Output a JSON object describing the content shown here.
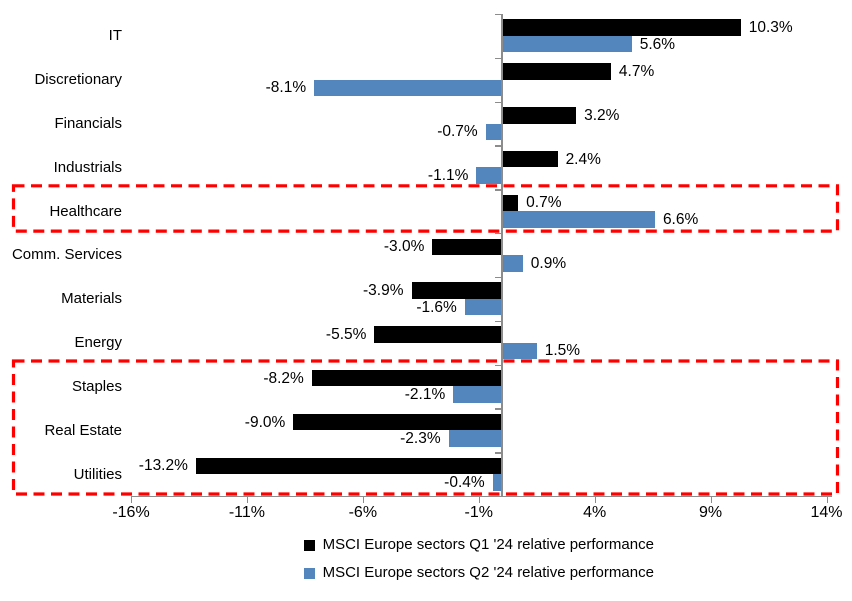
{
  "chart_data": {
    "type": "bar",
    "orientation": "horizontal",
    "title": "",
    "categories": [
      "IT",
      "Discretionary",
      "Financials",
      "Industrials",
      "Healthcare",
      "Comm. Services",
      "Materials",
      "Energy",
      "Staples",
      "Real Estate",
      "Utilities"
    ],
    "series": [
      {
        "name": "MSCI Europe sectors Q1 '24 relative performance",
        "color": "#000000",
        "values": [
          10.3,
          4.7,
          3.2,
          2.4,
          0.7,
          -3.0,
          -3.9,
          -5.5,
          -8.2,
          -9.0,
          -13.2
        ],
        "labels": [
          "10.3%",
          "4.7%",
          "3.2%",
          "2.4%",
          "0.7%",
          "-3.0%",
          "-3.9%",
          "-5.5%",
          "-8.2%",
          "-9.0%",
          "-13.2%"
        ]
      },
      {
        "name": "MSCI Europe sectors Q2 '24 relative performance",
        "color": "#5486BE",
        "values": [
          5.6,
          -8.1,
          -0.7,
          -1.1,
          6.6,
          0.9,
          -1.6,
          1.5,
          -2.1,
          -2.3,
          -0.4
        ],
        "labels": [
          "5.6%",
          "-8.1%",
          "-0.7%",
          "-1.1%",
          "6.6%",
          "0.9%",
          "-1.6%",
          "1.5%",
          "-2.1%",
          "-2.3%",
          "-0.4%"
        ]
      }
    ],
    "x_axis": {
      "min": -16,
      "max": 14,
      "tick_values": [
        -16,
        -11,
        -6,
        -1,
        4,
        9,
        14
      ],
      "tick_labels": [
        "-16%",
        "-11%",
        "-6%",
        "-1%",
        "4%",
        "9%",
        "14%"
      ]
    },
    "grid": false,
    "axis_color": "#8C8C8C",
    "text_color": "#000000",
    "legend_position": "bottom",
    "highlights": [
      {
        "start_row": 4,
        "end_row": 4,
        "color": "#FF0000"
      },
      {
        "start_row": 8,
        "end_row": 10,
        "color": "#FF0000"
      }
    ]
  }
}
